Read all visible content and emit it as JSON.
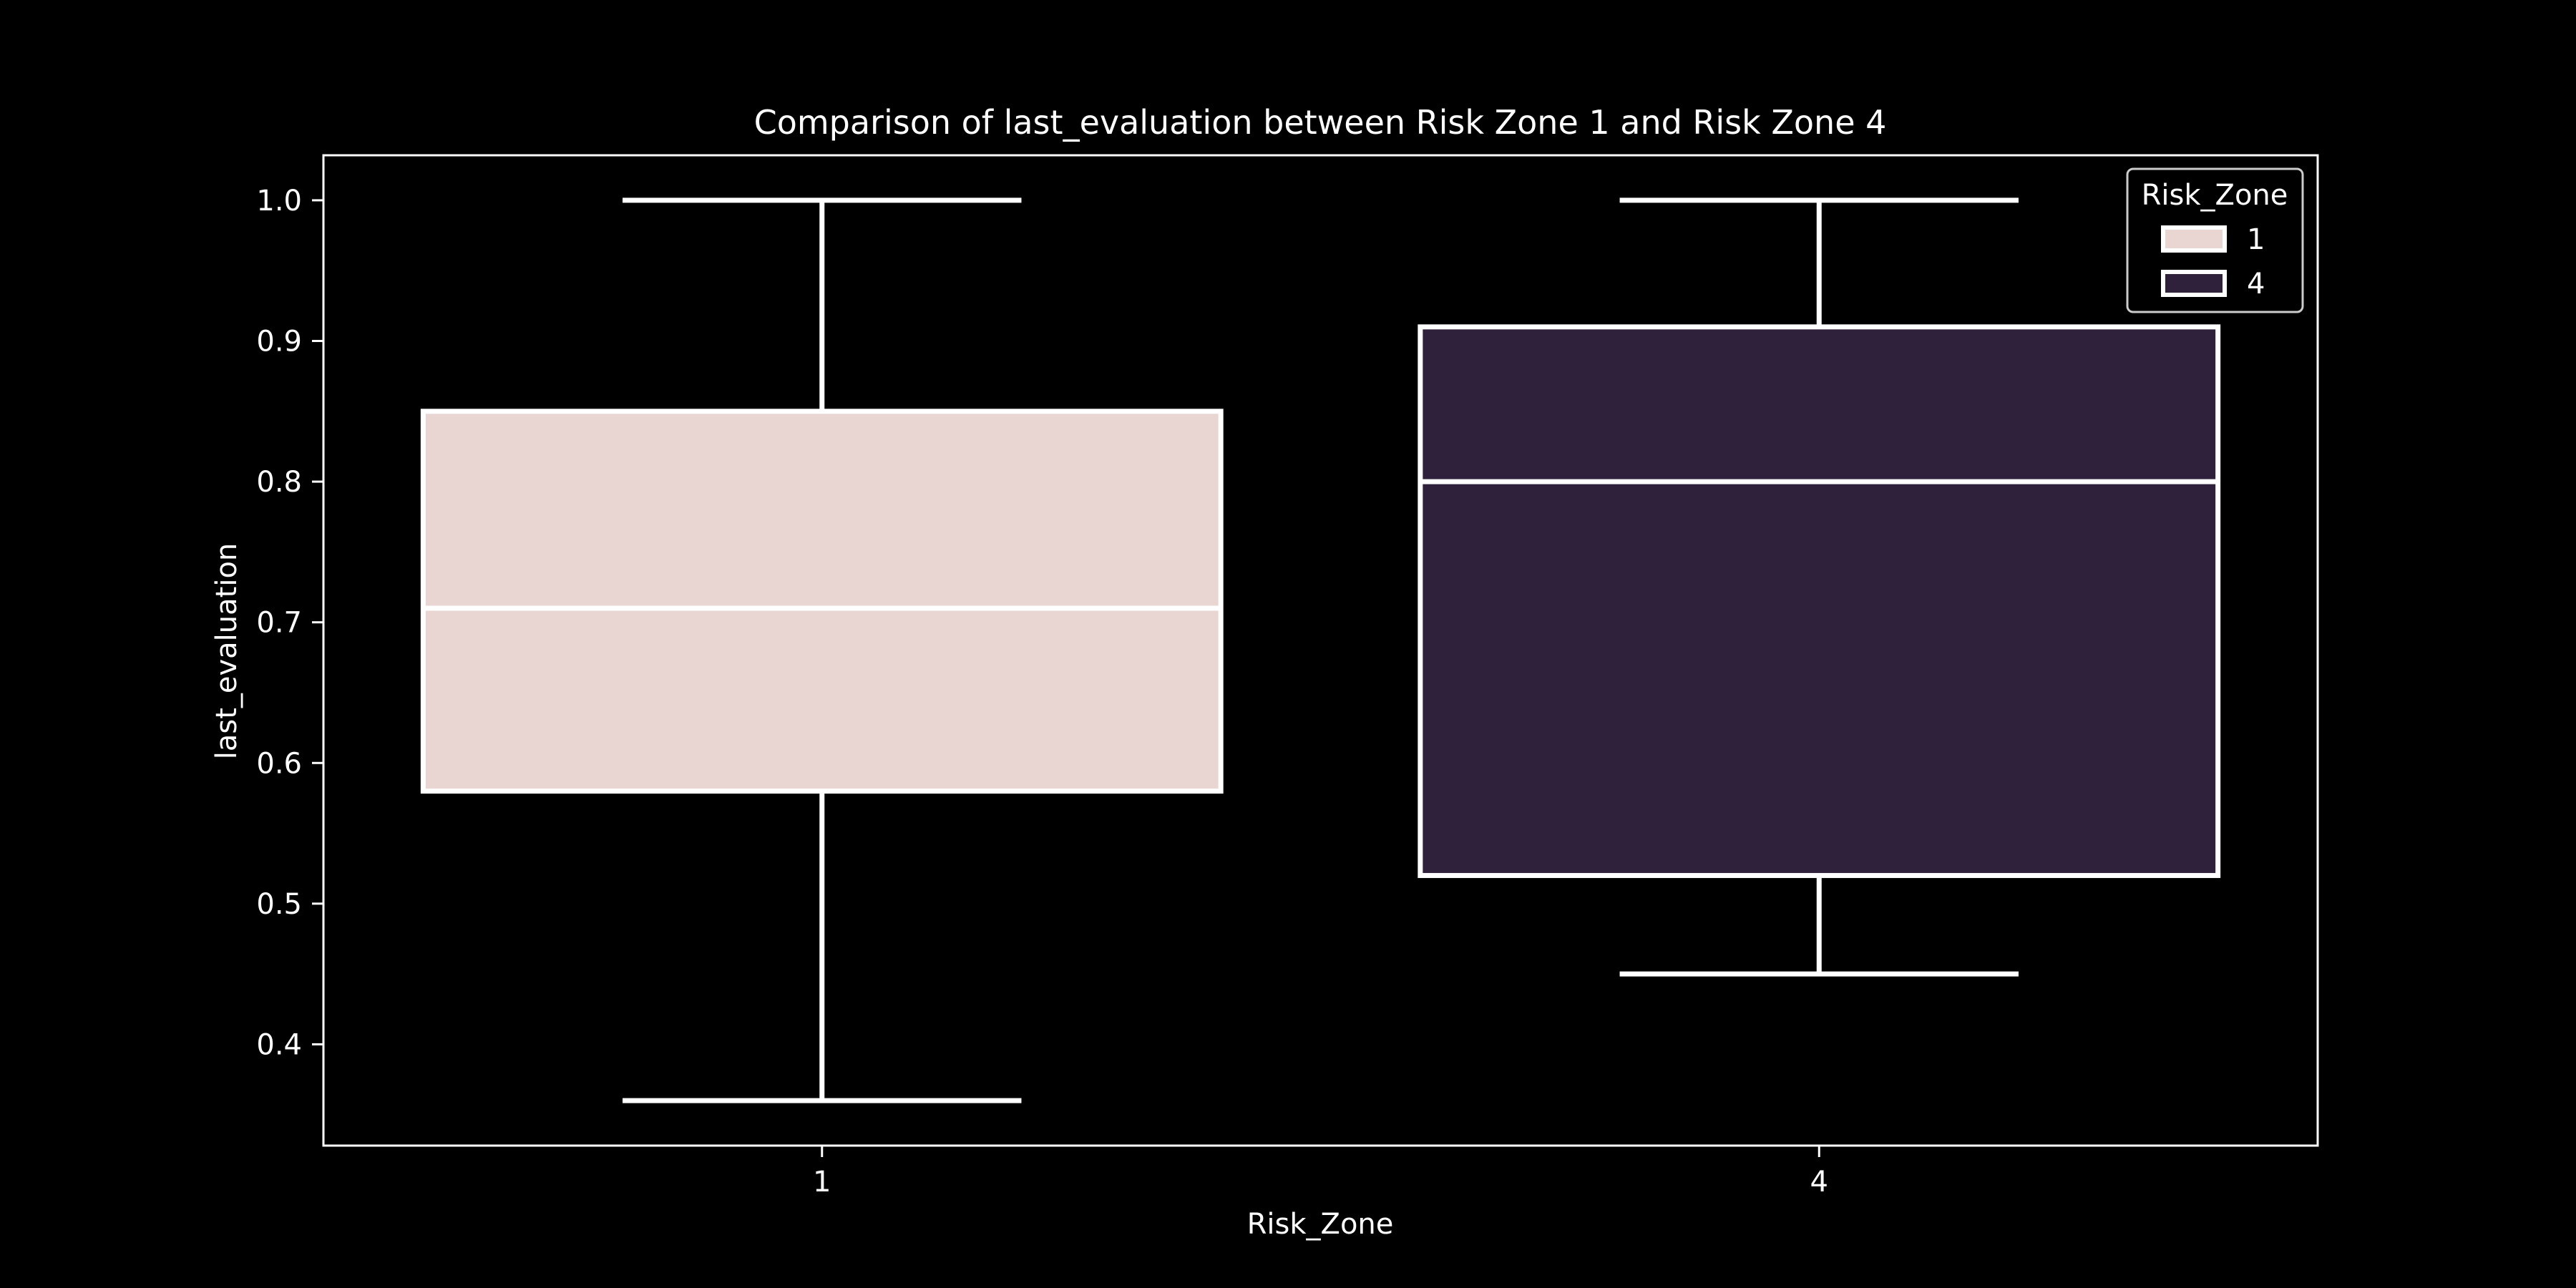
{
  "chart_data": {
    "type": "box",
    "title": "Comparison of last_evaluation between Risk Zone 1 and Risk Zone 4",
    "xlabel": "Risk_Zone",
    "ylabel": "last_evaluation",
    "categories": [
      "1",
      "4"
    ],
    "ylim": [
      0.328,
      1.032
    ],
    "yticks": [
      "0.4",
      "0.5",
      "0.6",
      "0.7",
      "0.8",
      "0.9",
      "1.0"
    ],
    "grid": false,
    "legend": {
      "title": "Risk_Zone",
      "placement": "top-right",
      "entries": [
        "1",
        "4"
      ]
    },
    "series": [
      {
        "name": "1",
        "color": "#e9d5d2",
        "min": 0.36,
        "q1": 0.58,
        "median": 0.71,
        "q3": 0.85,
        "max": 1.0
      },
      {
        "name": "4",
        "color": "#2f213b",
        "min": 0.45,
        "q1": 0.52,
        "median": 0.8,
        "q3": 0.91,
        "max": 1.0
      }
    ],
    "colors": {
      "background": "#000000",
      "foreground": "#ffffff"
    }
  }
}
